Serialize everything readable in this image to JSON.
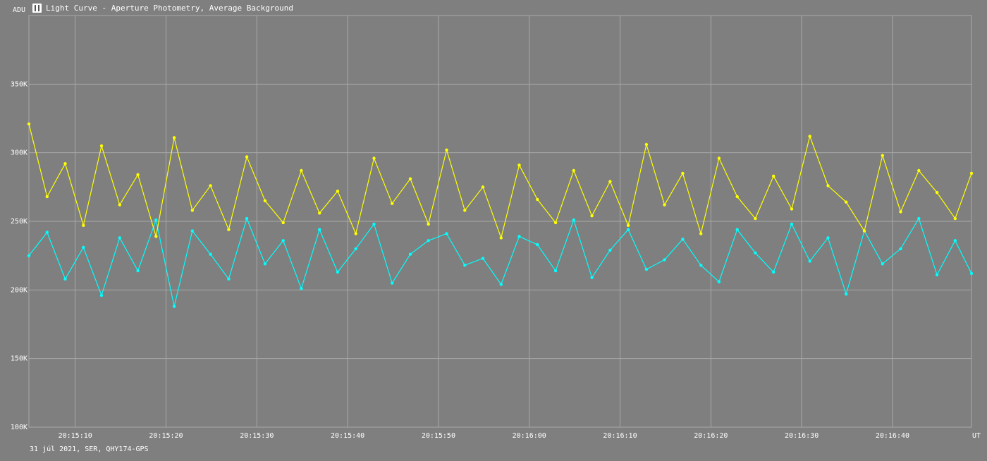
{
  "header": {
    "title": "Light Curve - Aperture Photometry, Average Background",
    "icon": "app-icon"
  },
  "footer": {
    "info": "31 júl 2021, SER, QHY174-GPS"
  },
  "colors": {
    "background": "#7f7f7f",
    "grid": "#a9a9a9",
    "series_a": "#ffff00",
    "series_b": "#00ffff"
  },
  "chart_data": {
    "type": "line",
    "title": "Light Curve - Aperture Photometry, Average Background",
    "ylabel": "ADU",
    "xlabel": "UT",
    "ylim": [
      100000,
      400000
    ],
    "xlim": [
      "20:15:04.9",
      "20:16:48.7"
    ],
    "yticks": [
      {
        "value": 100000,
        "label": "100K"
      },
      {
        "value": 150000,
        "label": "150K"
      },
      {
        "value": 200000,
        "label": "200K"
      },
      {
        "value": 250000,
        "label": "250K"
      },
      {
        "value": 300000,
        "label": "300K"
      },
      {
        "value": 350000,
        "label": "350K"
      }
    ],
    "xticks": [
      "20:15:10",
      "20:15:20",
      "20:15:30",
      "20:15:40",
      "20:15:50",
      "20:16:00",
      "20:16:10",
      "20:16:20",
      "20:16:30",
      "20:16:40"
    ],
    "grid": true,
    "legend": "none",
    "series": [
      {
        "color": "#00ffff",
        "x": [
          "20:15:04.9",
          "20:15:06.9",
          "20:15:08.9",
          "20:15:10.9",
          "20:15:12.9",
          "20:15:14.9",
          "20:15:16.9",
          "20:15:18.9",
          "20:15:20.9",
          "20:15:22.9",
          "20:15:24.9",
          "20:15:26.9",
          "20:15:28.9",
          "20:15:30.9",
          "20:15:32.9",
          "20:15:34.9",
          "20:15:36.9",
          "20:15:38.9",
          "20:15:40.9",
          "20:15:42.9",
          "20:15:44.9",
          "20:15:46.9",
          "20:15:48.9",
          "20:15:50.9",
          "20:15:52.9",
          "20:15:54.9",
          "20:15:56.9",
          "20:15:58.9",
          "20:16:00.9",
          "20:16:02.9",
          "20:16:04.9",
          "20:16:06.9",
          "20:16:08.9",
          "20:16:10.9",
          "20:16:12.9",
          "20:16:14.9",
          "20:16:16.9",
          "20:16:18.9",
          "20:16:20.9",
          "20:16:22.9",
          "20:16:24.9",
          "20:16:26.9",
          "20:16:28.9",
          "20:16:30.9",
          "20:16:32.9",
          "20:16:34.9",
          "20:16:36.9",
          "20:16:38.9",
          "20:16:40.9",
          "20:16:42.9",
          "20:16:44.9",
          "20:16:46.9",
          "20:16:48.7"
        ],
        "y": [
          225000,
          242000,
          208000,
          231000,
          196000,
          238000,
          214000,
          251000,
          188000,
          243000,
          226000,
          208000,
          252000,
          219000,
          236000,
          201000,
          244000,
          213000,
          230000,
          248000,
          205000,
          226000,
          236000,
          241000,
          218000,
          223000,
          204000,
          239000,
          233000,
          214000,
          251000,
          209000,
          229000,
          244000,
          215000,
          222000,
          237000,
          218000,
          206000,
          244000,
          227000,
          213000,
          248000,
          221000,
          238000,
          197000,
          243000,
          219000,
          230000,
          252000,
          211000,
          236000,
          212000
        ]
      },
      {
        "color": "#ffff00",
        "x": [
          "20:15:04.9",
          "20:15:06.9",
          "20:15:08.9",
          "20:15:10.9",
          "20:15:12.9",
          "20:15:14.9",
          "20:15:16.9",
          "20:15:18.9",
          "20:15:20.9",
          "20:15:22.9",
          "20:15:24.9",
          "20:15:26.9",
          "20:15:28.9",
          "20:15:30.9",
          "20:15:32.9",
          "20:15:34.9",
          "20:15:36.9",
          "20:15:38.9",
          "20:15:40.9",
          "20:15:42.9",
          "20:15:44.9",
          "20:15:46.9",
          "20:15:48.9",
          "20:15:50.9",
          "20:15:52.9",
          "20:15:54.9",
          "20:15:56.9",
          "20:15:58.9",
          "20:16:00.9",
          "20:16:02.9",
          "20:16:04.9",
          "20:16:06.9",
          "20:16:08.9",
          "20:16:10.9",
          "20:16:12.9",
          "20:16:14.9",
          "20:16:16.9",
          "20:16:18.9",
          "20:16:20.9",
          "20:16:22.9",
          "20:16:24.9",
          "20:16:26.9",
          "20:16:28.9",
          "20:16:30.9",
          "20:16:32.9",
          "20:16:34.9",
          "20:16:36.9",
          "20:16:38.9",
          "20:16:40.9",
          "20:16:42.9",
          "20:16:44.9",
          "20:16:46.9",
          "20:16:48.7"
        ],
        "y": [
          321000,
          268000,
          292000,
          247000,
          305000,
          262000,
          284000,
          239000,
          311000,
          258000,
          276000,
          244000,
          297000,
          265000,
          249000,
          287000,
          256000,
          272000,
          241000,
          296000,
          263000,
          281000,
          248000,
          302000,
          258000,
          275000,
          238000,
          291000,
          266000,
          249000,
          287000,
          254000,
          279000,
          247000,
          306000,
          262000,
          285000,
          241000,
          296000,
          268000,
          252000,
          283000,
          259000,
          312000,
          276000,
          264000,
          243000,
          298000,
          257000,
          287000,
          271000,
          252000,
          285000
        ]
      }
    ]
  }
}
